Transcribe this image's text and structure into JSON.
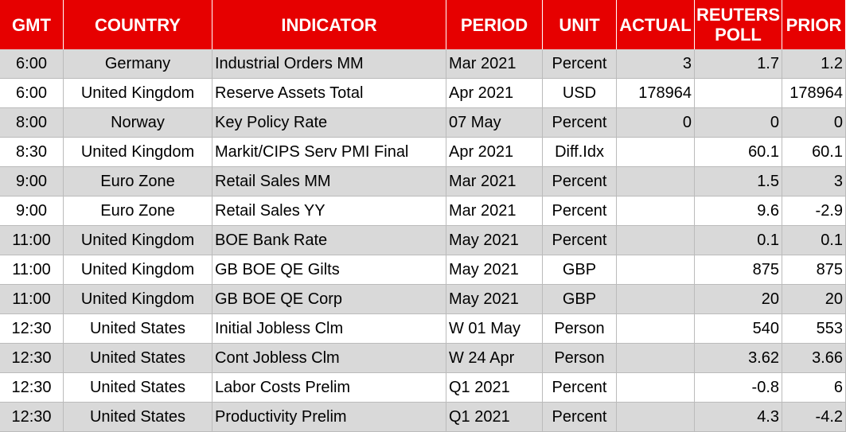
{
  "table": {
    "header": [
      "GMT",
      "COUNTRY",
      "INDICATOR",
      "PERIOD",
      "UNIT",
      "ACTUAL",
      "REUTERS POLL",
      "PRIOR"
    ],
    "rows": [
      [
        "6:00",
        "Germany",
        "Industrial Orders MM",
        "Mar 2021",
        "Percent",
        "3",
        "1.7",
        "1.2"
      ],
      [
        "6:00",
        "United Kingdom",
        "Reserve Assets Total",
        "Apr 2021",
        "USD",
        "178964",
        null,
        "178964"
      ],
      [
        "8:00",
        "Norway",
        "Key Policy Rate",
        "07 May",
        "Percent",
        "0",
        "0",
        "0"
      ],
      [
        "8:30",
        "United Kingdom",
        "Markit/CIPS Serv PMI Final",
        "Apr 2021",
        "Diff.Idx",
        null,
        "60.1",
        "60.1"
      ],
      [
        "9:00",
        "Euro Zone",
        "Retail Sales MM",
        "Mar 2021",
        "Percent",
        null,
        "1.5",
        "3"
      ],
      [
        "9:00",
        "Euro Zone",
        "Retail Sales YY",
        "Mar 2021",
        "Percent",
        null,
        "9.6",
        "-2.9"
      ],
      [
        "11:00",
        "United Kingdom",
        "BOE Bank Rate",
        "May 2021",
        "Percent",
        null,
        "0.1",
        "0.1"
      ],
      [
        "11:00",
        "United Kingdom",
        "GB BOE QE Gilts",
        "May 2021",
        "GBP",
        null,
        "875",
        "875"
      ],
      [
        "11:00",
        "United Kingdom",
        "GB BOE QE Corp",
        "May 2021",
        "GBP",
        null,
        "20",
        "20"
      ],
      [
        "12:30",
        "United States",
        "Initial Jobless Clm",
        "W 01 May",
        "Person",
        null,
        "540",
        "553"
      ],
      [
        "12:30",
        "United States",
        "Cont Jobless Clm",
        "W 24 Apr",
        "Person",
        null,
        "3.62",
        "3.66"
      ],
      [
        "12:30",
        "United States",
        "Labor Costs Prelim",
        "Q1 2021",
        "Percent",
        null,
        "-0.8",
        "6"
      ],
      [
        "12:30",
        "United States",
        "Productivity Prelim",
        "Q1 2021",
        "Percent",
        null,
        "4.3",
        "-4.2"
      ]
    ]
  }
}
